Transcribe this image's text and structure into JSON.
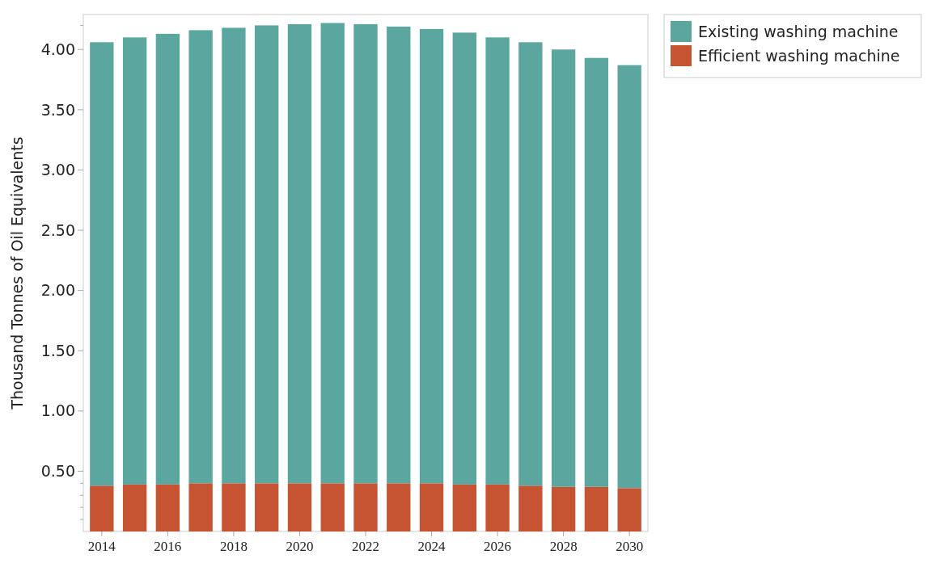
{
  "chart_data": {
    "type": "bar",
    "stacked": true,
    "ylabel": "Thousand Tonnes of Oil Equivalents",
    "categories": [
      "2014",
      null,
      "2016",
      null,
      "2018",
      null,
      "2020",
      null,
      "2022",
      null,
      "2024",
      null,
      "2026",
      null,
      "2028",
      null,
      "2030"
    ],
    "series": [
      {
        "name": "Efficient washing machine",
        "color": "#c65331",
        "values": [
          0.38,
          0.39,
          0.39,
          0.4,
          0.4,
          0.4,
          0.4,
          0.4,
          0.4,
          0.4,
          0.4,
          0.39,
          0.39,
          0.38,
          0.37,
          0.37,
          0.36
        ]
      },
      {
        "name": "Existing washing machine",
        "color": "#5ca6a0",
        "values": [
          3.68,
          3.71,
          3.74,
          3.76,
          3.78,
          3.8,
          3.81,
          3.82,
          3.81,
          3.79,
          3.77,
          3.75,
          3.71,
          3.68,
          3.63,
          3.56,
          3.51
        ]
      }
    ],
    "ylim": [
      0,
      4.29
    ],
    "yticks": [
      {
        "value": 0.1,
        "label": null
      },
      {
        "value": 0.2,
        "label": null
      },
      {
        "value": 0.3,
        "label": null
      },
      {
        "value": 0.4,
        "label": null
      },
      {
        "value": 0.5,
        "label": "0.50"
      },
      {
        "value": 1.0,
        "label": "1.00"
      },
      {
        "value": 1.5,
        "label": "1.50"
      },
      {
        "value": 2.0,
        "label": "2.00"
      },
      {
        "value": 2.5,
        "label": "2.50"
      },
      {
        "value": 3.0,
        "label": "3.00"
      },
      {
        "value": 3.5,
        "label": "3.50"
      },
      {
        "value": 4.0,
        "label": "4.00"
      },
      {
        "value": 4.2,
        "label": null
      }
    ],
    "legend": "top right"
  }
}
